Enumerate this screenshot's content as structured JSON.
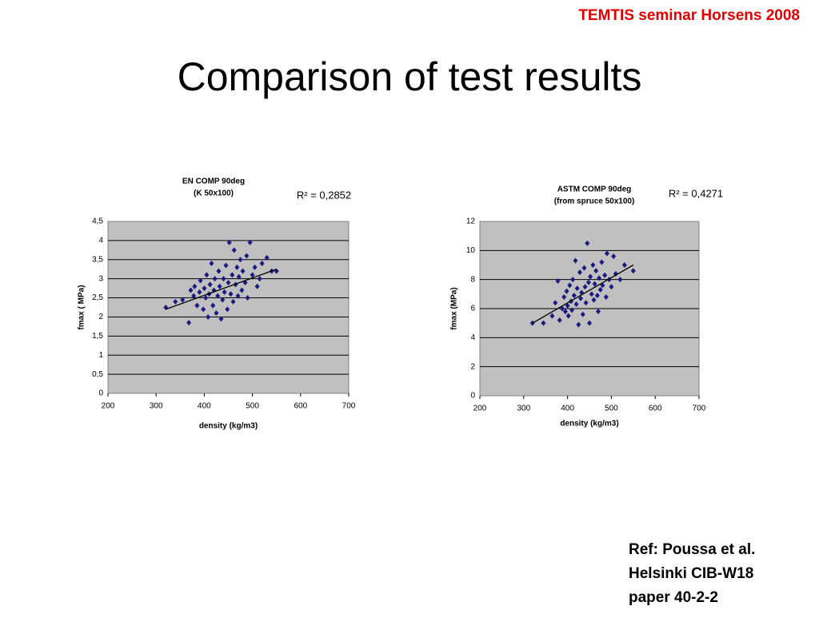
{
  "header": {
    "event": "TEMTIS seminar Horsens 2008",
    "title": "Comparison of test results"
  },
  "reference": [
    "Ref: Poussa et al.",
    "Helsinki CIB-W18",
    "paper 40-2-2"
  ],
  "chart_data": [
    {
      "type": "scatter",
      "title": [
        "EN COMP 90deg",
        "(K 50x100)"
      ],
      "annotation": "R² = 0,2852",
      "x_label": "density (kg/m3)",
      "y_label": "fmax ( MPa)",
      "color": "#1a1a80",
      "grid": true,
      "xlim": [
        200,
        700
      ],
      "xticks": [
        200,
        300,
        400,
        500,
        600,
        700
      ],
      "ylim": [
        0,
        4.5
      ],
      "yticks": [
        0,
        {
          "value": 0.5,
          "label": "0,5"
        },
        1,
        {
          "value": 1.5,
          "label": "1,5"
        },
        2,
        {
          "value": 2.5,
          "label": "2,5"
        },
        3,
        {
          "value": 3.5,
          "label": "3,5"
        },
        4,
        {
          "value": 4.5,
          "label": "4,5"
        }
      ],
      "x": [
        320,
        340,
        355,
        368,
        372,
        378,
        380,
        385,
        390,
        392,
        398,
        400,
        403,
        405,
        408,
        410,
        412,
        415,
        418,
        420,
        422,
        425,
        428,
        430,
        432,
        435,
        438,
        440,
        442,
        445,
        448,
        450,
        452,
        455,
        458,
        460,
        462,
        465,
        468,
        470,
        472,
        475,
        478,
        480,
        485,
        488,
        490,
        495,
        500,
        505,
        510,
        515,
        520,
        530,
        540,
        550
      ],
      "values": [
        2.25,
        2.4,
        2.45,
        1.85,
        2.7,
        2.55,
        2.8,
        2.3,
        2.65,
        2.95,
        2.2,
        2.75,
        2.5,
        3.1,
        2.0,
        2.6,
        2.85,
        3.4,
        2.3,
        2.7,
        3.0,
        2.1,
        2.55,
        3.2,
        2.8,
        1.95,
        2.45,
        3.0,
        2.65,
        3.35,
        2.2,
        2.9,
        3.95,
        2.6,
        3.1,
        2.4,
        3.75,
        2.85,
        3.3,
        2.55,
        3.05,
        3.5,
        2.7,
        3.2,
        2.9,
        3.6,
        2.5,
        3.95,
        3.1,
        3.3,
        2.8,
        3.0,
        3.4,
        3.55,
        3.2,
        3.2
      ],
      "trendline": {
        "x": [
          320,
          550
        ],
        "y": [
          2.2,
          3.25
        ]
      }
    },
    {
      "type": "scatter",
      "title": [
        "ASTM COMP 90deg",
        "(from spruce 50x100)"
      ],
      "annotation": "R² = 0,4271",
      "x_label": "density (kg/m3)",
      "y_label": "fmax (MPa)",
      "color": "#1a1a80",
      "grid": true,
      "xlim": [
        200,
        700
      ],
      "xticks": [
        200,
        300,
        400,
        500,
        600,
        700
      ],
      "ylim": [
        0,
        12
      ],
      "yticks": [
        0,
        2,
        4,
        6,
        8,
        10,
        12
      ],
      "x": [
        320,
        345,
        365,
        372,
        378,
        382,
        388,
        392,
        395,
        398,
        400,
        402,
        405,
        408,
        410,
        412,
        415,
        418,
        420,
        422,
        425,
        428,
        430,
        432,
        435,
        438,
        440,
        442,
        445,
        448,
        450,
        452,
        455,
        458,
        460,
        462,
        465,
        468,
        470,
        472,
        475,
        478,
        480,
        485,
        488,
        490,
        495,
        500,
        505,
        510,
        520,
        530,
        550
      ],
      "values": [
        5.0,
        5.0,
        5.5,
        6.4,
        7.9,
        5.2,
        6.0,
        6.8,
        5.8,
        7.2,
        6.2,
        5.5,
        7.6,
        6.5,
        5.9,
        8.0,
        6.9,
        9.3,
        6.3,
        7.4,
        4.9,
        8.5,
        6.7,
        7.1,
        5.6,
        8.8,
        7.5,
        6.4,
        10.5,
        7.8,
        5.0,
        8.2,
        7.0,
        9.0,
        6.6,
        7.7,
        8.6,
        6.9,
        5.8,
        8.1,
        7.3,
        9.2,
        7.6,
        8.3,
        6.8,
        9.8,
        8.0,
        7.5,
        9.6,
        8.4,
        8.0,
        9.0,
        8.6
      ],
      "trendline": {
        "x": [
          320,
          550
        ],
        "y": [
          5.0,
          9.0
        ]
      }
    }
  ]
}
